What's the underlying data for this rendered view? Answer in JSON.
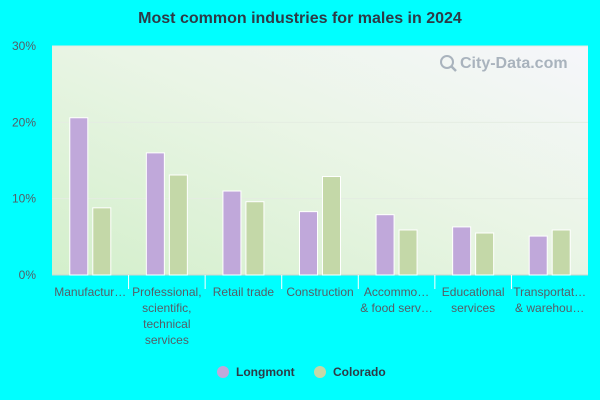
{
  "chart_data": {
    "type": "bar",
    "title": "Most common industries for males in 2024",
    "categories": [
      [
        "Manufactur…"
      ],
      [
        "Professional,",
        "scientific,",
        "technical",
        "services"
      ],
      [
        "Retail trade"
      ],
      [
        "Construction"
      ],
      [
        "Accommo…",
        "& food serv…"
      ],
      [
        "Educational",
        "services"
      ],
      [
        "Transportat…",
        "& warehou…"
      ]
    ],
    "series": [
      {
        "name": "Longmont",
        "color": "#c0a8da",
        "values": [
          20.6,
          16.0,
          11.0,
          8.3,
          7.9,
          6.3,
          5.1
        ]
      },
      {
        "name": "Colorado",
        "color": "#c4d8a8",
        "values": [
          8.8,
          13.1,
          9.6,
          12.9,
          5.9,
          5.5,
          5.9
        ]
      }
    ],
    "ylim": [
      0,
      30
    ],
    "yticks": [
      "0%",
      "10%",
      "20%",
      "30%"
    ],
    "grid": true,
    "legend": "bottom"
  },
  "watermark": "City-Data.com",
  "colors": {
    "background": "#00ffff",
    "plot_green": "#d6f0cf",
    "plot_white": "#f7f7fb"
  }
}
